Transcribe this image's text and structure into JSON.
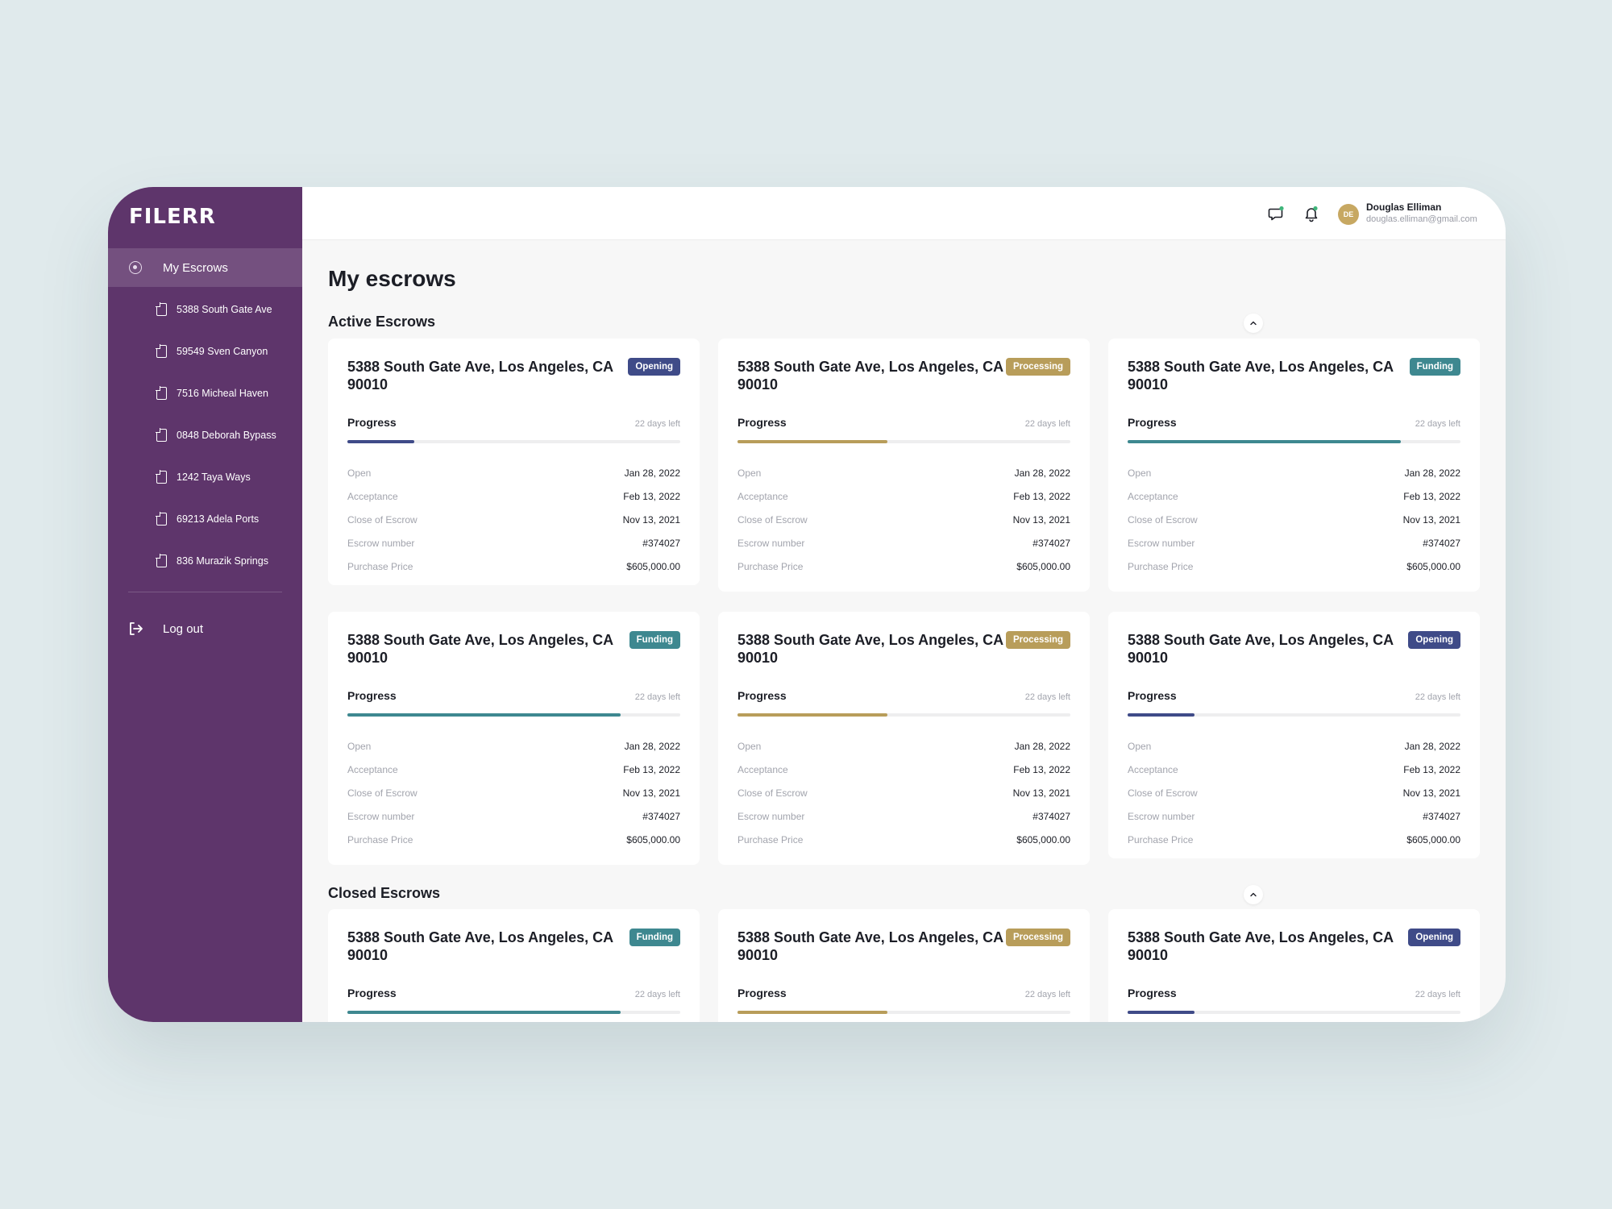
{
  "brand": {
    "logo": "FILERR"
  },
  "colors": {
    "sidebar": "#5e356b",
    "opening": "#3f4b88",
    "processing": "#b89d5a",
    "funding": "#3e8890"
  },
  "sidebar": {
    "main_label": "My Escrows",
    "items": [
      {
        "label": "5388 South Gate Ave"
      },
      {
        "label": "59549 Sven Canyon"
      },
      {
        "label": "7516 Micheal Haven"
      },
      {
        "label": "0848 Deborah Bypass"
      },
      {
        "label": "1242 Taya Ways"
      },
      {
        "label": "69213 Adela Ports"
      },
      {
        "label": "836 Murazik Springs"
      }
    ],
    "logout_label": "Log out"
  },
  "header": {
    "icons": [
      "chat-icon",
      "bell-icon"
    ],
    "user": {
      "initials": "DE",
      "name": "Douglas Elliman",
      "email": "douglas.elliman@gmail.com"
    }
  },
  "page": {
    "title": "My escrows"
  },
  "sections": {
    "active": {
      "title": "Active Escrows"
    },
    "closed": {
      "title": "Closed Escrows"
    }
  },
  "detail_labels": [
    "Open",
    "Acceptance",
    "Close of Escrow",
    "Escrow number",
    "Purchase Price"
  ],
  "cards": [
    {
      "title": "5388 South Gate Ave, Los Angeles, CA 90010",
      "status": "Opening",
      "progress_label": "Progress",
      "days_left": "22 days left",
      "progress": 0.2,
      "details": [
        "Jan 28, 2022",
        "Feb 13, 2022",
        "Nov 13, 2021",
        "#374027",
        "$605,000.00"
      ]
    },
    {
      "title": "5388 South Gate Ave, Los Angeles, CA 90010",
      "status": "Processing",
      "progress_label": "Progress",
      "days_left": "22 days left",
      "progress": 0.45,
      "details": [
        "Jan 28, 2022",
        "Feb 13, 2022",
        "Nov 13, 2021",
        "#374027",
        "$605,000.00"
      ]
    },
    {
      "title": "5388 South Gate Ave, Los Angeles, CA 90010",
      "status": "Funding",
      "progress_label": "Progress",
      "days_left": "22 days left",
      "progress": 0.82,
      "details": [
        "Jan 28, 2022",
        "Feb 13, 2022",
        "Nov 13, 2021",
        "#374027",
        "$605,000.00"
      ]
    },
    {
      "title": "5388 South Gate Ave, Los Angeles, CA 90010",
      "status": "Funding",
      "progress_label": "Progress",
      "days_left": "22 days left",
      "progress": 0.82,
      "details": [
        "Jan 28, 2022",
        "Feb 13, 2022",
        "Nov 13, 2021",
        "#374027",
        "$605,000.00"
      ]
    },
    {
      "title": "5388 South Gate Ave, Los Angeles, CA 90010",
      "status": "Processing",
      "progress_label": "Progress",
      "days_left": "22 days left",
      "progress": 0.45,
      "details": [
        "Jan 28, 2022",
        "Feb 13, 2022",
        "Nov 13, 2021",
        "#374027",
        "$605,000.00"
      ]
    },
    {
      "title": "5388 South Gate Ave, Los Angeles, CA 90010",
      "status": "Opening",
      "progress_label": "Progress",
      "days_left": "22 days left",
      "progress": 0.2,
      "details": [
        "Jan 28, 2022",
        "Feb 13, 2022",
        "Nov 13, 2021",
        "#374027",
        "$605,000.00"
      ]
    },
    {
      "title": "5388 South Gate Ave, Los Angeles, CA 90010",
      "status": "Funding",
      "progress_label": "Progress",
      "days_left": "22 days left",
      "progress": 0.82
    },
    {
      "title": "5388 South Gate Ave, Los Angeles, CA 90010",
      "status": "Processing",
      "progress_label": "Progress",
      "days_left": "22 days left",
      "progress": 0.45
    },
    {
      "title": "5388 South Gate Ave, Los Angeles, CA 90010",
      "status": "Opening",
      "progress_label": "Progress",
      "days_left": "22 days left",
      "progress": 0.2
    }
  ]
}
